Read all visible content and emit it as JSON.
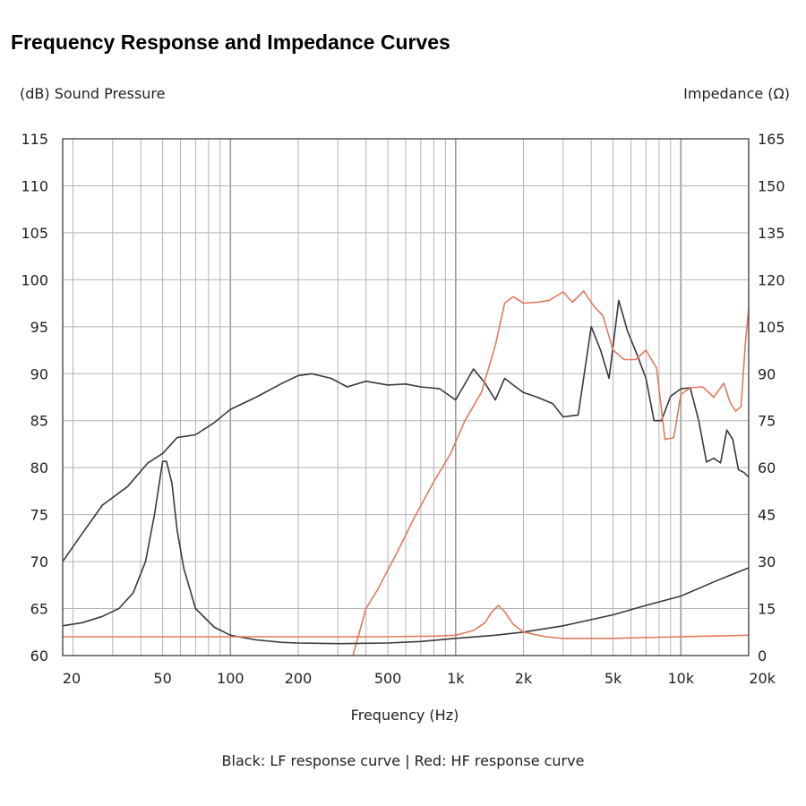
{
  "page": {
    "title": "Frequency Response and Impedance Curves",
    "note": "Black: LF response curve  |  Red: HF response curve"
  },
  "chart_data": {
    "type": "line",
    "title": "Frequency Response and Impedance Curves",
    "xlabel": "Frequency (Hz)",
    "ylabel_left": "(dB) Sound Pressure",
    "ylabel_right": "Impedance (Ω)",
    "x_scale": "log",
    "xlim": [
      18,
      20000
    ],
    "ylim_left": [
      60,
      115
    ],
    "ylim_right": [
      0,
      165
    ],
    "grid": true,
    "x_ticks": [
      20,
      50,
      100,
      200,
      500,
      1000,
      2000,
      5000,
      10000,
      20000
    ],
    "x_tick_labels": [
      "20",
      "50",
      "100",
      "200",
      "500",
      "1k",
      "2k",
      "5k",
      "10k",
      "20k"
    ],
    "y_left_ticks": [
      60,
      65,
      70,
      75,
      80,
      85,
      90,
      95,
      100,
      105,
      110,
      115
    ],
    "y_right_ticks": [
      0,
      15,
      30,
      45,
      60,
      75,
      90,
      105,
      120,
      135,
      150,
      165
    ],
    "colors": {
      "lf": "#3a3a3a",
      "hf": "#e07a5f",
      "grid": "#b4b4b4",
      "frame": "#555555"
    },
    "series": [
      {
        "key": "lf_spl",
        "axis": "left",
        "color": "#3a3a3a",
        "x": [
          18,
          22,
          27,
          35,
          43,
          50,
          58,
          70,
          85,
          100,
          130,
          170,
          200,
          230,
          280,
          330,
          400,
          500,
          600,
          700,
          850,
          1000,
          1200,
          1350,
          1500,
          1650,
          1800,
          2000,
          2300,
          2700,
          3000,
          3500,
          4000,
          4400,
          4800,
          5300,
          5800,
          6400,
          7000,
          7600,
          8200,
          9000,
          10000,
          11000,
          12000,
          13000,
          14000,
          15000,
          16000,
          17000,
          18000,
          19000,
          20000
        ],
        "y": [
          70,
          73,
          76,
          78,
          80.5,
          81.5,
          83.2,
          83.5,
          84.8,
          86.2,
          87.5,
          89,
          89.8,
          90,
          89.5,
          88.6,
          89.2,
          88.8,
          88.9,
          88.6,
          88.4,
          87.2,
          90.5,
          89,
          87.2,
          89.5,
          88.8,
          88,
          87.5,
          86.8,
          85.4,
          85.6,
          95,
          92.5,
          89.5,
          97.8,
          94.5,
          92,
          89.5,
          85,
          85,
          87.6,
          88.4,
          88.5,
          85,
          80.6,
          81,
          80.5,
          84,
          83,
          79.8,
          79.5,
          79
        ]
      },
      {
        "key": "hf_spl",
        "axis": "left",
        "color": "#e07a5f",
        "x": [
          350,
          400,
          450,
          550,
          650,
          800,
          950,
          1100,
          1300,
          1500,
          1650,
          1800,
          2000,
          2300,
          2600,
          3000,
          3300,
          3700,
          4100,
          4500,
          5000,
          5600,
          6300,
          7000,
          7800,
          8500,
          9300,
          10000,
          11000,
          12500,
          14000,
          15500,
          16500,
          17500,
          18500,
          19300,
          20000
        ],
        "y": [
          60,
          65,
          67,
          71,
          74.5,
          78.5,
          81.5,
          85,
          88,
          93,
          97.5,
          98.2,
          97.5,
          97.6,
          97.8,
          98.7,
          97.6,
          98.8,
          97.2,
          96.2,
          92.5,
          91.5,
          91.5,
          92.5,
          90.6,
          83,
          83.2,
          87.8,
          88.5,
          88.6,
          87.5,
          89,
          87,
          86,
          86.5,
          93,
          97
        ]
      },
      {
        "key": "lf_impedance",
        "axis": "right",
        "color": "#3a3a3a",
        "x": [
          18,
          22,
          27,
          32,
          37,
          42,
          46,
          50,
          52,
          55,
          58,
          62,
          70,
          85,
          100,
          130,
          170,
          200,
          300,
          500,
          700,
          1000,
          1500,
          2000,
          3000,
          5000,
          7000,
          10000,
          14000,
          17000,
          20000
        ],
        "y": [
          9.5,
          10.5,
          12.5,
          15,
          20,
          30,
          45,
          62,
          62,
          55,
          40,
          28,
          15,
          9,
          6.5,
          5,
          4.2,
          4,
          3.8,
          4,
          4.5,
          5.5,
          6.5,
          7.5,
          9.5,
          13,
          16,
          19,
          23.5,
          26,
          28
        ]
      },
      {
        "key": "hf_impedance",
        "axis": "right",
        "color": "#e07a5f",
        "x": [
          18,
          100,
          300,
          500,
          800,
          1000,
          1200,
          1350,
          1450,
          1550,
          1650,
          1800,
          2000,
          2500,
          3000,
          5000,
          10000,
          20000
        ],
        "y": [
          6,
          6,
          6,
          6,
          6.2,
          6.5,
          8,
          10.5,
          14,
          16,
          14,
          10,
          7.5,
          6,
          5.5,
          5.5,
          6,
          6.5
        ]
      }
    ]
  }
}
